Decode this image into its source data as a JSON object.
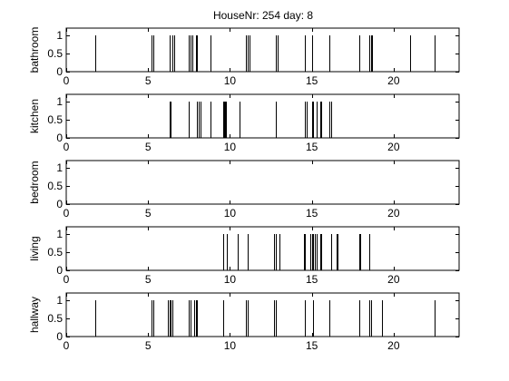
{
  "chart_data": {
    "type": "bar",
    "title": "HouseNr: 254 day: 8",
    "x_ticks": [
      0,
      5,
      10,
      15,
      20
    ],
    "y_ticks": [
      0,
      0.5,
      1
    ],
    "xlim": [
      0,
      24
    ],
    "ylim": [
      0,
      1.2
    ],
    "line_color": "#000000",
    "subplots": [
      {
        "ylabel": "bathroom",
        "x": [
          1.8,
          5.2,
          5.3,
          6.3,
          6.5,
          6.6,
          7.5,
          7.6,
          7.7,
          7.9,
          8.0,
          8.8,
          11.0,
          11.1,
          11.2,
          12.8,
          12.9,
          14.6,
          15.0,
          16.1,
          17.9,
          18.5,
          18.6,
          18.7,
          21.0,
          22.5
        ],
        "values": [
          1,
          1,
          1,
          1,
          1,
          1,
          1,
          1,
          1,
          1,
          1,
          1,
          1,
          1,
          1,
          1,
          1,
          1,
          1,
          1,
          1,
          1,
          1,
          1,
          1,
          1
        ]
      },
      {
        "ylabel": "kitchen",
        "x": [
          6.3,
          6.35,
          6.4,
          7.5,
          8.0,
          8.1,
          8.2,
          8.8,
          9.6,
          9.65,
          9.7,
          9.75,
          10.6,
          12.8,
          14.6,
          14.7,
          15.0,
          15.05,
          15.1,
          15.3,
          15.5,
          15.6,
          16.1,
          16.2
        ],
        "values": [
          1,
          1,
          1,
          1,
          1,
          1,
          1,
          1,
          1,
          1,
          1,
          1,
          1,
          1,
          1,
          1,
          1,
          1,
          1,
          1,
          1,
          1,
          1,
          1
        ]
      },
      {
        "ylabel": "bedroom",
        "x": [],
        "values": []
      },
      {
        "ylabel": "living",
        "x": [
          9.6,
          9.8,
          10.5,
          11.1,
          12.7,
          12.8,
          13.0,
          14.5,
          14.6,
          14.9,
          15.0,
          15.05,
          15.2,
          15.3,
          15.5,
          15.6,
          16.2,
          16.5,
          16.6,
          17.9,
          17.95,
          18.5
        ],
        "values": [
          1,
          1,
          1,
          1,
          1,
          1,
          1,
          1,
          1,
          1,
          1,
          1,
          1,
          1,
          1,
          1,
          1,
          1,
          1,
          1,
          1,
          1
        ]
      },
      {
        "ylabel": "hallway",
        "x": [
          1.8,
          5.2,
          5.3,
          6.2,
          6.3,
          6.4,
          6.5,
          7.5,
          7.6,
          7.8,
          7.9,
          8.0,
          9.6,
          11.0,
          11.1,
          12.7,
          12.8,
          14.6,
          15.1,
          16.1,
          17.9,
          18.5,
          18.6,
          19.3,
          22.5
        ],
        "values": [
          1,
          1,
          1,
          1,
          1,
          1,
          1,
          1,
          1,
          1,
          1,
          1,
          1,
          1,
          1,
          1,
          1,
          1,
          1,
          1,
          1,
          1,
          1,
          1,
          1
        ]
      }
    ]
  }
}
